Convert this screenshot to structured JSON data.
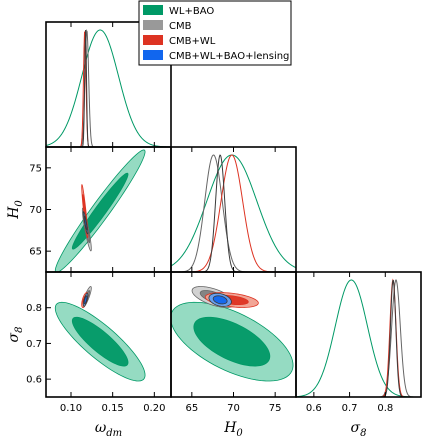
{
  "chart_data": {
    "type": "triangle-corner-plot",
    "parameters": [
      {
        "key": "omega_dm",
        "symbol": "ω",
        "sub": "dm",
        "range": [
          0.07,
          0.22
        ],
        "ticks": [
          0.1,
          0.15,
          0.2
        ],
        "tick_labels": [
          "0.10",
          "0.15",
          "0.20"
        ]
      },
      {
        "key": "H0",
        "symbol": "H",
        "sub": "0",
        "range": [
          62.5,
          77.5
        ],
        "ticks": [
          65,
          70,
          75
        ],
        "tick_labels": [
          "65",
          "70",
          "75"
        ]
      },
      {
        "key": "sigma8",
        "symbol": "σ",
        "sub": "8",
        "range": [
          0.55,
          0.9
        ],
        "ticks": [
          0.6,
          0.7,
          0.8
        ],
        "tick_labels": [
          "0.6",
          "0.7",
          "0.8"
        ]
      }
    ],
    "legend": {
      "placement": "top-center",
      "entries": [
        {
          "label": "WL+BAO",
          "color": "#009966"
        },
        {
          "label": "CMB",
          "color": "#999999"
        },
        {
          "label": "CMB+WL",
          "color": "#dd3322"
        },
        {
          "label": "CMB+WL+BAO+lensing",
          "color": "#1166ee"
        }
      ]
    },
    "datasets": [
      {
        "name": "WL+BAO",
        "line": "#009966",
        "fill_outer": "#8fd9bf",
        "fill_inner": "#009966",
        "mean": {
          "omega_dm": 0.135,
          "H0": 69.8,
          "sigma8": 0.705
        },
        "sd": {
          "omega_dm": 0.022,
          "H0": 3.0,
          "sigma8": 0.045
        },
        "corr": {
          "omega_dm-H0": 0.97,
          "omega_dm-sigma8": -0.85,
          "H0-sigma8": -0.6
        }
      },
      {
        "name": "CMB",
        "line": "#666666",
        "fill_outer": "#d0d0d0",
        "fill_inner": "#808080",
        "mean": {
          "omega_dm": 0.119,
          "H0": 67.6,
          "sigma8": 0.83
        },
        "sd": {
          "omega_dm": 0.0022,
          "H0": 1.05,
          "sigma8": 0.012
        },
        "corr": {
          "omega_dm-H0": -0.9,
          "omega_dm-sigma8": 0.85,
          "H0-sigma8": -0.6
        }
      },
      {
        "name": "CMB+WL",
        "line": "#dd3322",
        "fill_outer": "#f0a090",
        "fill_inner": "#dd3322",
        "mean": {
          "omega_dm": 0.1165,
          "H0": 69.8,
          "sigma8": 0.8215
        },
        "sd": {
          "omega_dm": 0.0015,
          "H0": 1.3,
          "sigma8": 0.0085
        },
        "corr": {
          "omega_dm-H0": -0.92,
          "omega_dm-sigma8": 0.6,
          "H0-sigma8": -0.4
        }
      },
      {
        "name": "CMB+WL+BAO+lensing",
        "line": "#3a3a3a",
        "fill_outer": "#5fa0f5",
        "fill_inner": "#1166ee",
        "mean": {
          "omega_dm": 0.1175,
          "H0": 68.4,
          "sigma8": 0.822
        },
        "sd": {
          "omega_dm": 0.0011,
          "H0": 0.55,
          "sigma8": 0.0075
        },
        "corr": {
          "omega_dm-H0": -0.9,
          "omega_dm-sigma8": 0.7,
          "H0-sigma8": -0.3
        }
      }
    ],
    "grid": false
  }
}
